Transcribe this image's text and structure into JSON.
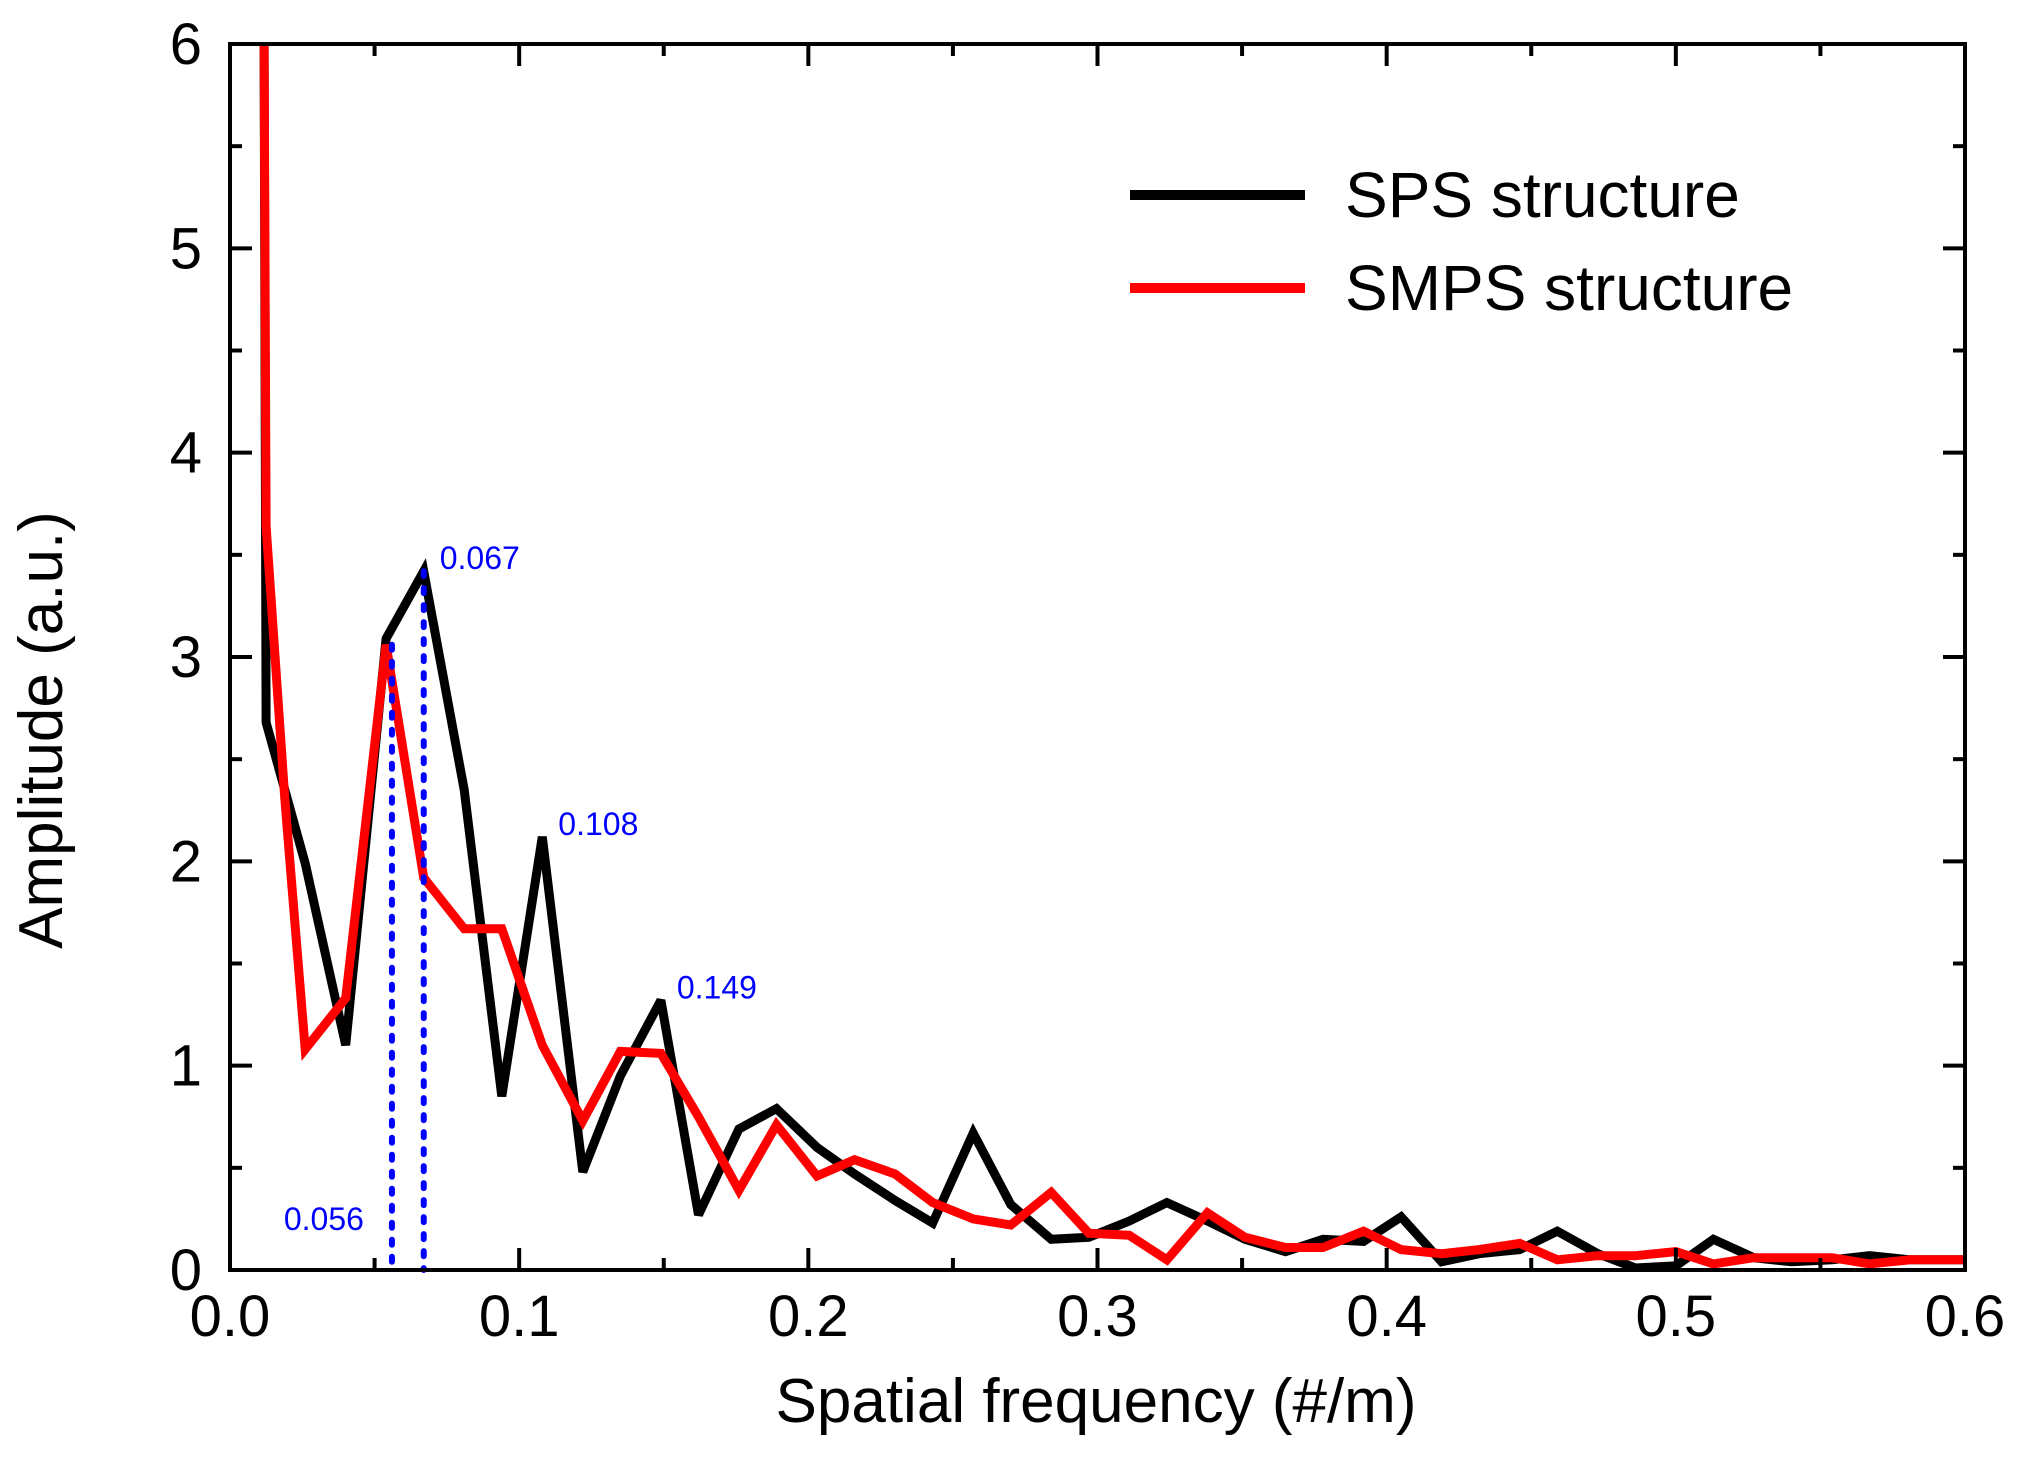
{
  "chart_data": {
    "type": "line",
    "title": "",
    "xlabel": "Spatial frequency (#/m)",
    "ylabel": "Amplitude (a.u.)",
    "xlim": [
      0.0,
      0.6
    ],
    "ylim": [
      0,
      6
    ],
    "xticks": [
      0.0,
      0.1,
      0.2,
      0.3,
      0.4,
      0.5,
      0.6
    ],
    "xtick_labels": [
      "0.0",
      "0.1",
      "0.2",
      "0.3",
      "0.4",
      "0.5",
      "0.6"
    ],
    "yticks": [
      0,
      1,
      2,
      3,
      4,
      5,
      6
    ],
    "ytick_labels": [
      "0",
      "1",
      "2",
      "3",
      "4",
      "5",
      "6"
    ],
    "legend_position": "top-right",
    "series": [
      {
        "name": "SPS structure",
        "color": "#000000",
        "x": [
          0.0118,
          0.0125,
          0.026,
          0.04,
          0.054,
          0.067,
          0.081,
          0.094,
          0.108,
          0.122,
          0.135,
          0.149,
          0.162,
          0.176,
          0.189,
          0.203,
          0.216,
          0.23,
          0.243,
          0.257,
          0.27,
          0.284,
          0.297,
          0.311,
          0.324,
          0.338,
          0.351,
          0.365,
          0.378,
          0.392,
          0.405,
          0.419,
          0.432,
          0.446,
          0.459,
          0.473,
          0.486,
          0.5,
          0.513,
          0.527,
          0.54,
          0.554,
          0.567,
          0.581,
          0.6
        ],
        "values": [
          6.0,
          2.68,
          1.99,
          1.1,
          3.09,
          3.42,
          2.35,
          0.85,
          2.12,
          0.48,
          0.95,
          1.32,
          0.27,
          0.69,
          0.79,
          0.6,
          0.47,
          0.34,
          0.23,
          0.67,
          0.32,
          0.15,
          0.16,
          0.24,
          0.33,
          0.24,
          0.15,
          0.09,
          0.15,
          0.14,
          0.26,
          0.04,
          0.08,
          0.1,
          0.19,
          0.08,
          0.01,
          0.02,
          0.15,
          0.06,
          0.04,
          0.05,
          0.07,
          0.05,
          0.05
        ]
      },
      {
        "name": "SMPS structure",
        "color": "#ff0000",
        "x": [
          0.0118,
          0.0125,
          0.019,
          0.026,
          0.04,
          0.054,
          0.067,
          0.081,
          0.094,
          0.108,
          0.122,
          0.135,
          0.149,
          0.162,
          0.176,
          0.189,
          0.203,
          0.216,
          0.23,
          0.243,
          0.257,
          0.27,
          0.284,
          0.297,
          0.311,
          0.324,
          0.338,
          0.351,
          0.365,
          0.378,
          0.392,
          0.405,
          0.419,
          0.432,
          0.446,
          0.459,
          0.473,
          0.486,
          0.5,
          0.513,
          0.527,
          0.54,
          0.554,
          0.567,
          0.581,
          0.6
        ],
        "values": [
          6.0,
          3.64,
          2.3,
          1.08,
          1.33,
          3.06,
          1.92,
          1.67,
          1.67,
          1.1,
          0.73,
          1.07,
          1.06,
          0.75,
          0.39,
          0.71,
          0.46,
          0.54,
          0.47,
          0.33,
          0.25,
          0.22,
          0.38,
          0.18,
          0.17,
          0.05,
          0.28,
          0.16,
          0.11,
          0.11,
          0.19,
          0.1,
          0.08,
          0.1,
          0.13,
          0.05,
          0.07,
          0.07,
          0.09,
          0.03,
          0.06,
          0.06,
          0.06,
          0.03,
          0.05,
          0.05
        ]
      }
    ],
    "annotations": [
      {
        "label": "0.056",
        "x": 0.056,
        "peak_y": 3.06,
        "style": "dotted",
        "color": "#0000ff",
        "label_side": "bottom-left"
      },
      {
        "label": "0.067",
        "x": 0.067,
        "peak_y": 3.42,
        "style": "dotted",
        "color": "#0000ff",
        "label_side": "top-right"
      },
      {
        "label": "0.108",
        "x": 0.108,
        "peak_y": 2.12,
        "style": "none",
        "color": "#0000ff",
        "label_side": "top-right"
      },
      {
        "label": "0.149",
        "x": 0.149,
        "peak_y": 1.32,
        "style": "none",
        "color": "#0000ff",
        "label_side": "top-right"
      }
    ]
  }
}
